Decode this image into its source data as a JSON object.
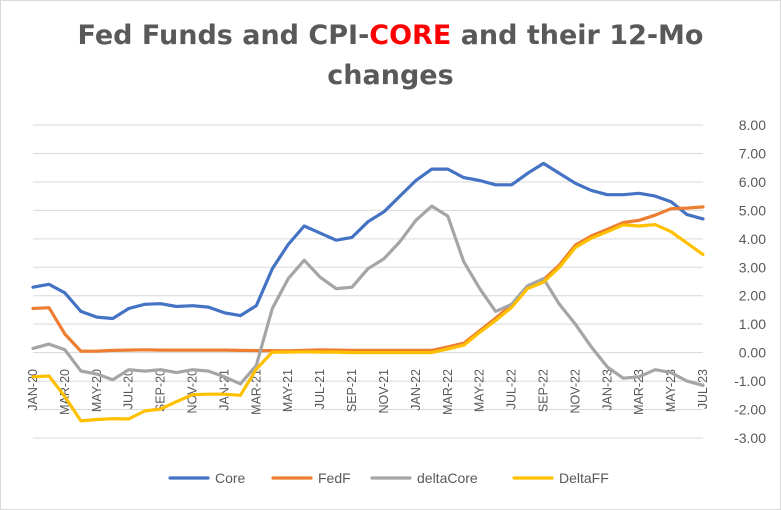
{
  "chart_data": {
    "type": "line",
    "title_part1": "Fed Funds and CPI-",
    "title_highlight": "CORE",
    "title_part2": " and their 12-Mo",
    "title_line2": "changes",
    "ylim": [
      -3,
      8
    ],
    "yticks": [
      "8.00",
      "7.00",
      "6.00",
      "5.00",
      "4.00",
      "3.00",
      "2.00",
      "1.00",
      "0.00",
      "-1.00",
      "-2.00",
      "-3.00"
    ],
    "x": [
      "JAN-20",
      "FEB-20",
      "MAR-20",
      "APR-20",
      "MAY-20",
      "JUN-20",
      "JUL-20",
      "AUG-20",
      "SEP-20",
      "OCT-20",
      "NOV-20",
      "DEC-20",
      "JAN-21",
      "FEB-21",
      "MAR-21",
      "APR-21",
      "MAY-21",
      "JUN-21",
      "JUL-21",
      "AUG-21",
      "SEP-21",
      "OCT-21",
      "NOV-21",
      "DEC-21",
      "JAN-22",
      "FEB-22",
      "MAR-22",
      "APR-22",
      "MAY-22",
      "JUN-22",
      "JUL-22",
      "AUG-22",
      "SEP-22",
      "OCT-22",
      "NOV-22",
      "DEC-22",
      "JAN-23",
      "FEB-23",
      "MAR-23",
      "APR-23",
      "MAY-23",
      "JUN-23",
      "JUL-23"
    ],
    "xticklabels": [
      "JAN-20",
      "MAR-20",
      "MAY-20",
      "JUL-20",
      "SEP-20",
      "NOV-20",
      "JAN-21",
      "MAR-21",
      "MAY-21",
      "JUL-21",
      "SEP-21",
      "NOV-21",
      "JAN-22",
      "MAR-22",
      "MAY-22",
      "JUL-22",
      "SEP-22",
      "NOV-22",
      "JAN-23",
      "MAR-23",
      "MAY-23",
      "JUL-23"
    ],
    "legend_position": "bottom",
    "grid": true,
    "series": [
      {
        "name": "Core",
        "color": "#4472c4",
        "values": [
          2.3,
          2.4,
          2.1,
          1.45,
          1.25,
          1.2,
          1.55,
          1.7,
          1.72,
          1.62,
          1.65,
          1.6,
          1.4,
          1.3,
          1.65,
          2.95,
          3.8,
          4.45,
          4.2,
          3.95,
          4.05,
          4.6,
          4.95,
          5.5,
          6.05,
          6.45,
          6.45,
          6.15,
          6.05,
          5.9,
          5.9,
          6.3,
          6.65,
          6.3,
          5.95,
          5.7,
          5.55,
          5.55,
          5.6,
          5.5,
          5.3,
          4.85,
          4.7
        ]
      },
      {
        "name": "FedF",
        "color": "#ed7d31",
        "values": [
          1.55,
          1.58,
          0.65,
          0.05,
          0.05,
          0.08,
          0.09,
          0.1,
          0.09,
          0.09,
          0.09,
          0.09,
          0.09,
          0.08,
          0.07,
          0.07,
          0.06,
          0.08,
          0.1,
          0.09,
          0.08,
          0.08,
          0.08,
          0.08,
          0.08,
          0.08,
          0.2,
          0.33,
          0.77,
          1.21,
          1.68,
          2.33,
          2.56,
          3.08,
          3.78,
          4.1,
          4.33,
          4.57,
          4.65,
          4.83,
          5.06,
          5.08,
          5.12
        ]
      },
      {
        "name": "deltaCore",
        "color": "#a5a5a5",
        "values": [
          0.15,
          0.3,
          0.1,
          -0.65,
          -0.75,
          -0.95,
          -0.6,
          -0.65,
          -0.6,
          -0.7,
          -0.6,
          -0.65,
          -0.85,
          -1.1,
          -0.45,
          1.55,
          2.6,
          3.25,
          2.65,
          2.25,
          2.3,
          2.95,
          3.3,
          3.9,
          4.65,
          5.15,
          4.8,
          3.2,
          2.25,
          1.45,
          1.7,
          2.35,
          2.6,
          1.7,
          1.0,
          0.2,
          -0.5,
          -0.9,
          -0.85,
          -0.6,
          -0.7,
          -1.0,
          -1.15
        ]
      },
      {
        "name": "DeltaFF",
        "color": "#ffc000",
        "values": [
          -0.85,
          -0.82,
          -1.55,
          -2.4,
          -2.35,
          -2.32,
          -2.33,
          -2.05,
          -1.98,
          -1.72,
          -1.48,
          -1.46,
          -1.46,
          -1.5,
          -0.58,
          0.02,
          0.02,
          0.03,
          0.02,
          0.02,
          0.0,
          0.0,
          0.0,
          0.0,
          0.0,
          0.0,
          0.13,
          0.26,
          0.71,
          1.13,
          1.59,
          2.25,
          2.48,
          3.0,
          3.7,
          4.02,
          4.25,
          4.49,
          4.45,
          4.5,
          4.25,
          3.85,
          3.45
        ]
      }
    ]
  }
}
